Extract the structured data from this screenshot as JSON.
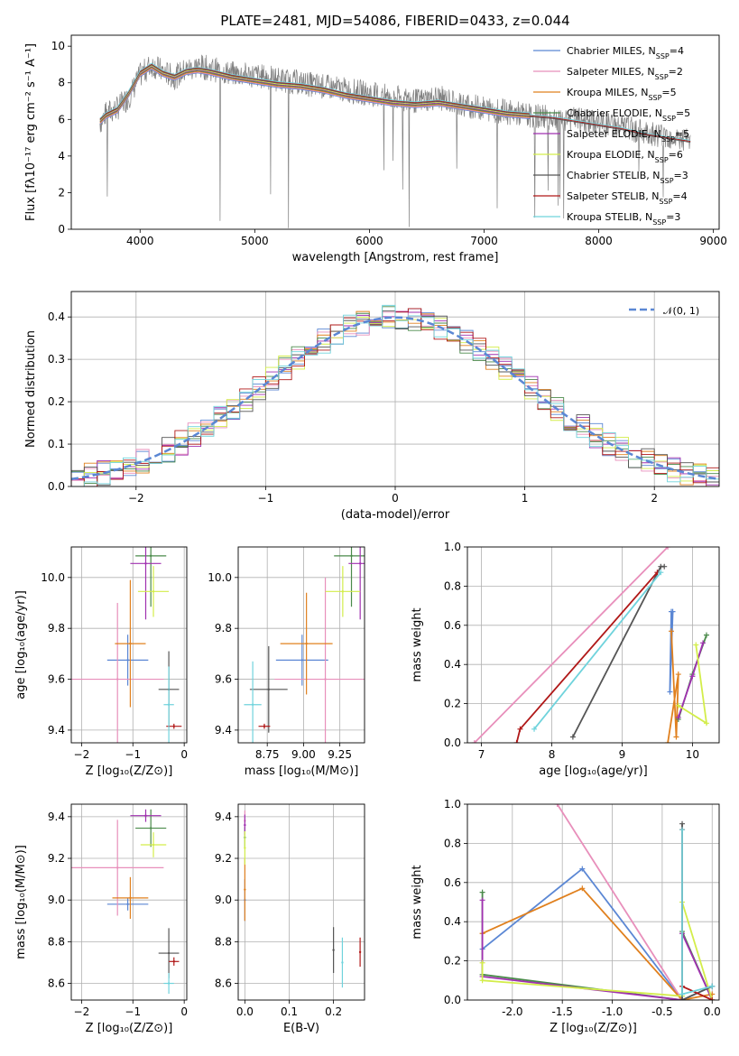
{
  "figure": {
    "title": "PLATE=2481, MJD=54086, FIBERID=0433, z=0.044"
  },
  "series_styles": [
    {
      "name": "Chabrier MILES",
      "n_ssp": "4",
      "color": "#5b87d4"
    },
    {
      "name": "Salpeter MILES",
      "n_ssp": "2",
      "color": "#e88fbb"
    },
    {
      "name": "Kroupa MILES",
      "n_ssp": "5",
      "color": "#e0801e"
    },
    {
      "name": "Chabrier ELODIE",
      "n_ssp": "5",
      "color": "#4a8a4a"
    },
    {
      "name": "Salpeter ELODIE",
      "n_ssp": "5",
      "color": "#a030b0"
    },
    {
      "name": "Kroupa ELODIE",
      "n_ssp": "6",
      "color": "#d3ed4a"
    },
    {
      "name": "Chabrier STELIB",
      "n_ssp": "3",
      "color": "#555555"
    },
    {
      "name": "Salpeter STELIB",
      "n_ssp": "4",
      "color": "#b01818"
    },
    {
      "name": "Kroupa STELIB",
      "n_ssp": "3",
      "color": "#6fd3dc"
    }
  ],
  "chart_data": [
    {
      "id": "spectrum",
      "type": "line",
      "xlabel": "wavelength [Angstrom, rest frame]",
      "ylabel": "Flux [fλ10⁻¹⁷ erg cm⁻² s⁻¹ A⁻¹]",
      "xlim": [
        3400,
        9050
      ],
      "ylim": [
        0,
        10.6
      ],
      "xticks": [
        4000,
        5000,
        6000,
        7000,
        8000,
        9000
      ],
      "yticks": [
        0,
        2,
        4,
        6,
        8,
        10
      ],
      "legend": "top-right",
      "data_color": "#808080",
      "data": {
        "x": [
          3650,
          3700,
          3800,
          3900,
          4000,
          4100,
          4200,
          4300,
          4400,
          4500,
          4600,
          4800,
          5000,
          5200,
          5400,
          5600,
          5800,
          6000,
          6200,
          6400,
          6600,
          6800,
          7000,
          7200,
          7400,
          7600,
          7800,
          8000,
          8200,
          8400,
          8600,
          8800
        ],
        "y": [
          5.8,
          6.3,
          6.6,
          7.2,
          8.4,
          9.0,
          8.6,
          8.3,
          8.7,
          8.9,
          8.8,
          8.5,
          8.4,
          8.2,
          8.0,
          7.8,
          7.6,
          7.4,
          7.2,
          7.0,
          7.2,
          6.8,
          6.6,
          6.4,
          6.2,
          6.1,
          6.0,
          5.8,
          5.6,
          5.3,
          5.1,
          4.8
        ]
      },
      "model": {
        "x": [
          3650,
          3700,
          3800,
          3900,
          4000,
          4100,
          4200,
          4300,
          4400,
          4500,
          4600,
          4800,
          5000,
          5200,
          5400,
          5600,
          5800,
          6000,
          6200,
          6400,
          6600,
          6800,
          7000,
          7200,
          7400
        ],
        "y": [
          5.9,
          6.2,
          6.5,
          7.4,
          8.5,
          8.9,
          8.5,
          8.3,
          8.6,
          8.7,
          8.6,
          8.3,
          8.1,
          7.9,
          7.8,
          7.6,
          7.3,
          7.1,
          6.9,
          6.8,
          6.9,
          6.7,
          6.5,
          6.3,
          6.2
        ]
      },
      "stelib_model": {
        "x": [
          7400,
          7600,
          7800,
          8000,
          8200,
          8400,
          8600,
          8800
        ],
        "y": [
          6.2,
          6.1,
          5.9,
          5.7,
          5.5,
          5.2,
          5.0,
          4.8
        ]
      }
    },
    {
      "id": "residuals",
      "type": "histogram",
      "xlabel": "(data-model)/error",
      "ylabel": "Normed distribution",
      "xlim": [
        -2.5,
        2.5
      ],
      "ylim": [
        0,
        0.46
      ],
      "xticks": [
        -2,
        -1,
        0,
        1,
        2
      ],
      "yticks": [
        0.0,
        0.1,
        0.2,
        0.3,
        0.4
      ],
      "legend": "top-right",
      "reference": {
        "label": "𝒩(0, 1)",
        "color": "#5b87d4",
        "mean": 0,
        "sigma": 1
      }
    },
    {
      "id": "Z-age",
      "type": "errorbar",
      "xlabel": "Z [log₁₀(Z/Z⊙)]",
      "ylabel": "age  [log₁₀(age/yr)]",
      "xlim": [
        -2.2,
        0.05
      ],
      "ylim": [
        9.35,
        10.12
      ],
      "xticks": [
        -2,
        -1,
        0
      ],
      "yticks": [
        9.4,
        9.6,
        9.8,
        10.0
      ],
      "points": [
        {
          "x": -1.1,
          "xerr": 0.4,
          "y": 9.675,
          "yerr": 0.1
        },
        {
          "x": -1.3,
          "xerr": 0.9,
          "y": 9.6,
          "yerr": 0.3
        },
        {
          "x": -1.05,
          "xerr": 0.3,
          "y": 9.74,
          "yerr": 0.25
        },
        {
          "x": -0.65,
          "xerr": 0.3,
          "y": 10.085,
          "yerr": 0.2
        },
        {
          "x": -0.75,
          "xerr": 0.3,
          "y": 10.055,
          "yerr": 0.22
        },
        {
          "x": -0.6,
          "xerr": 0.3,
          "y": 9.945,
          "yerr": 0.1
        },
        {
          "x": -0.3,
          "xerr": 0.2,
          "y": 9.56,
          "yerr": 0.15
        },
        {
          "x": -0.2,
          "xerr": 0.15,
          "y": 9.415,
          "yerr": 0.01
        },
        {
          "x": -0.3,
          "xerr": 0.1,
          "y": 9.5,
          "yerr": 0.15
        }
      ]
    },
    {
      "id": "mass-age",
      "type": "errorbar",
      "xlabel": "mass [log₁₀(M/M⊙)]",
      "ylabel": "",
      "xlim": [
        8.55,
        9.42
      ],
      "ylim": [
        9.35,
        10.12
      ],
      "xticks": [
        8.75,
        9.0,
        9.25
      ],
      "yticks": [
        9.4,
        9.6,
        9.8,
        10.0
      ],
      "points": [
        {
          "x": 8.99,
          "xerr": 0.18,
          "y": 9.675,
          "yerr": 0.1
        },
        {
          "x": 9.15,
          "xerr": 0.35,
          "y": 9.6,
          "yerr": 0.4
        },
        {
          "x": 9.02,
          "xerr": 0.18,
          "y": 9.74,
          "yerr": 0.2
        },
        {
          "x": 9.33,
          "xerr": 0.12,
          "y": 10.085,
          "yerr": 0.2
        },
        {
          "x": 9.39,
          "xerr": 0.08,
          "y": 10.055,
          "yerr": 0.22
        },
        {
          "x": 9.27,
          "xerr": 0.12,
          "y": 9.945,
          "yerr": 0.1
        },
        {
          "x": 8.76,
          "xerr": 0.13,
          "y": 9.56,
          "yerr": 0.17
        },
        {
          "x": 8.73,
          "xerr": 0.04,
          "y": 9.415,
          "yerr": 0.01
        },
        {
          "x": 8.65,
          "xerr": 0.06,
          "y": 9.5,
          "yerr": 0.17
        }
      ]
    },
    {
      "id": "age-weight",
      "type": "line",
      "xlabel": "age  [log₁₀(age/yr)]",
      "ylabel": "mass weight",
      "xlim": [
        6.8,
        10.38
      ],
      "ylim": [
        0,
        1.0
      ],
      "xticks": [
        7,
        8,
        9,
        10
      ],
      "yticks": [
        0.0,
        0.2,
        0.4,
        0.6,
        0.8,
        1.0
      ],
      "series": [
        {
          "x": [
            9.7,
            9.68,
            9.72
          ],
          "y": [
            0.67,
            0.26,
            0.67
          ]
        },
        {
          "x": [
            6.9,
            9.65
          ],
          "y": [
            0.0,
            1.0
          ]
        },
        {
          "x": [
            9.7,
            9.77,
            9.8,
            9.65
          ],
          "y": [
            0.57,
            0.03,
            0.35,
            0.0
          ]
        },
        {
          "x": [
            10.2,
            10.0,
            9.8
          ],
          "y": [
            0.55,
            0.35,
            0.12
          ]
        },
        {
          "x": [
            10.15,
            10.0,
            9.8
          ],
          "y": [
            0.51,
            0.34,
            0.13
          ]
        },
        {
          "x": [
            10.05,
            10.2,
            9.8
          ],
          "y": [
            0.5,
            0.1,
            0.19
          ]
        },
        {
          "x": [
            8.3,
            9.55,
            9.6
          ],
          "y": [
            0.03,
            0.9,
            0.9
          ]
        },
        {
          "x": [
            7.5,
            7.55,
            9.5
          ],
          "y": [
            0.0,
            0.07,
            0.87
          ]
        },
        {
          "x": [
            7.75,
            9.55
          ],
          "y": [
            0.07,
            0.87
          ]
        }
      ]
    },
    {
      "id": "Z-mass",
      "type": "errorbar",
      "xlabel": "Z [log₁₀(Z/Z⊙)]",
      "ylabel": "mass [log₁₀(M/M⊙)]",
      "xlim": [
        -2.2,
        0.05
      ],
      "ylim": [
        8.52,
        9.46
      ],
      "xticks": [
        -2,
        -1,
        0
      ],
      "yticks": [
        8.6,
        8.8,
        9.0,
        9.2,
        9.4
      ],
      "points": [
        {
          "x": -1.1,
          "xerr": 0.4,
          "y": 8.98,
          "yerr": 0.03
        },
        {
          "x": -1.3,
          "xerr": 0.9,
          "y": 9.155,
          "yerr": 0.23
        },
        {
          "x": -1.05,
          "xerr": 0.35,
          "y": 9.01,
          "yerr": 0.1
        },
        {
          "x": -0.65,
          "xerr": 0.3,
          "y": 9.345,
          "yerr": 0.09
        },
        {
          "x": -0.75,
          "xerr": 0.3,
          "y": 9.405,
          "yerr": 0.03
        },
        {
          "x": -0.6,
          "xerr": 0.25,
          "y": 9.265,
          "yerr": 0.06
        },
        {
          "x": -0.3,
          "xerr": 0.2,
          "y": 8.745,
          "yerr": 0.12
        },
        {
          "x": -0.2,
          "xerr": 0.1,
          "y": 8.705,
          "yerr": 0.02
        },
        {
          "x": -0.3,
          "xerr": 0.1,
          "y": 8.6,
          "yerr": 0.05
        }
      ]
    },
    {
      "id": "EBV-mass",
      "type": "errorbar",
      "xlabel": "E(B-V)",
      "ylabel": "",
      "xlim": [
        -0.015,
        0.27
      ],
      "ylim": [
        8.52,
        9.46
      ],
      "xticks": [
        0.0,
        0.1,
        0.2
      ],
      "yticks": [
        8.6,
        8.8,
        9.0,
        9.2,
        9.4
      ],
      "points": [
        {
          "x": 0.0,
          "xerr": 0.0,
          "y": 9.0,
          "yerr": 0.1
        },
        {
          "x": 0.0,
          "xerr": 0.0,
          "y": 9.38,
          "yerr": 0.05
        },
        {
          "x": 0.0,
          "xerr": 0.0,
          "y": 9.05,
          "yerr": 0.15
        },
        {
          "x": 0.0,
          "xerr": 0.0,
          "y": 9.3,
          "yerr": 0.05
        },
        {
          "x": 0.0,
          "xerr": 0.0,
          "y": 9.36,
          "yerr": 0.05
        },
        {
          "x": 0.0,
          "xerr": 0.0,
          "y": 9.25,
          "yerr": 0.08
        },
        {
          "x": 0.2,
          "xerr": 0.0,
          "y": 8.76,
          "yerr": 0.11
        },
        {
          "x": 0.26,
          "xerr": 0.0,
          "y": 8.75,
          "yerr": 0.07
        },
        {
          "x": 0.22,
          "xerr": 0.0,
          "y": 8.7,
          "yerr": 0.12
        }
      ]
    },
    {
      "id": "Z-weight",
      "type": "line",
      "xlabel": "Z [log₁₀(Z/Z⊙)]",
      "ylabel": "mass weight",
      "xlim": [
        -2.45,
        0.07
      ],
      "ylim": [
        0,
        1.0
      ],
      "xticks": [
        -2.0,
        -1.5,
        -1.0,
        -0.5,
        0.0
      ],
      "yticks": [
        0.0,
        0.2,
        0.4,
        0.6,
        0.8,
        1.0
      ],
      "series": [
        {
          "x": [
            -2.3,
            -1.3,
            -0.3,
            0.0
          ],
          "y": [
            0.26,
            0.67,
            0.0,
            0.07
          ]
        },
        {
          "x": [
            -1.55,
            -0.3
          ],
          "y": [
            1.0,
            0.0
          ]
        },
        {
          "x": [
            -2.3,
            -1.3,
            -0.3,
            0.0
          ],
          "y": [
            0.34,
            0.57,
            0.0,
            0.03
          ]
        },
        {
          "x": [
            -2.3,
            -2.3,
            -0.3,
            -0.3,
            0.0
          ],
          "y": [
            0.55,
            0.13,
            0.0,
            0.35,
            0.0
          ]
        },
        {
          "x": [
            -2.3,
            -2.3,
            -0.3,
            -0.3,
            0.0
          ],
          "y": [
            0.51,
            0.12,
            0.0,
            0.34,
            0.0
          ]
        },
        {
          "x": [
            -2.3,
            -2.3,
            -0.3,
            -0.3,
            0.0
          ],
          "y": [
            0.19,
            0.1,
            0.02,
            0.5,
            0.0
          ]
        },
        {
          "x": [
            -0.3,
            -0.3,
            0.0
          ],
          "y": [
            0.9,
            0.0,
            0.07
          ]
        },
        {
          "x": [
            -0.3,
            -0.3,
            0.0
          ],
          "y": [
            0.87,
            0.07,
            0.0
          ]
        },
        {
          "x": [
            -0.3,
            -0.3,
            0.0
          ],
          "y": [
            0.87,
            0.03,
            0.07
          ]
        }
      ]
    }
  ]
}
